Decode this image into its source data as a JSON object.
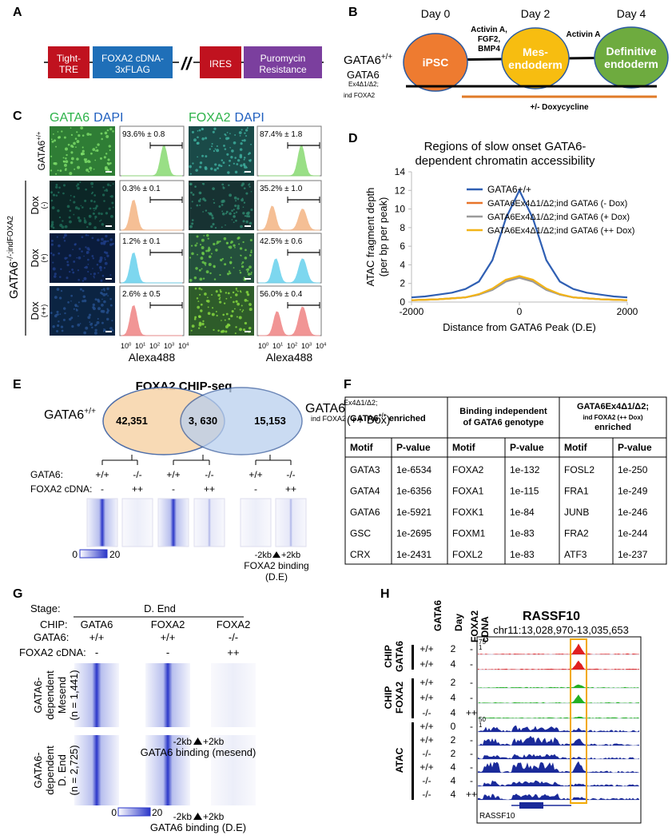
{
  "panels": [
    "A",
    "B",
    "C",
    "D",
    "E",
    "F",
    "G",
    "H"
  ],
  "construct": {
    "elements": [
      [
        "Tight-",
        "TRE"
      ],
      [
        "FOXA2 cDNA-",
        "3xFLAG"
      ],
      [
        "IRES"
      ],
      [
        "Puromycin",
        "Resistance"
      ]
    ],
    "break": "//"
  },
  "timeline": {
    "days": [
      "Day 0",
      "Day 2",
      "Day 4"
    ],
    "stages": [
      [
        "iPSC"
      ],
      [
        "Mes-",
        "endoderm"
      ],
      [
        "Definitive",
        "endoderm"
      ]
    ],
    "treatments": [
      [
        "Activin A,",
        "FGF2,",
        "BMP4"
      ],
      [
        "Activin A"
      ]
    ],
    "wildtype": {
      "base": "GATA6",
      "sup": "+/+"
    },
    "mutant": [
      "GATA6",
      "Ex4Δ1/Δ2;",
      "ind FOXA2"
    ],
    "dox": "+/- Doxycycline"
  },
  "flow": {
    "headers": [
      {
        "marker": "GATA6",
        "stain": "DAPI"
      },
      {
        "marker": "FOXA2",
        "stain": "DAPI"
      }
    ],
    "group": {
      "base": "GATA6",
      "sup": "-/-;indFOXA2"
    },
    "wildtype": {
      "base": "GATA6",
      "sup": "+/+"
    },
    "dox_rows": [
      {
        "label": "Dox",
        "dose": "(-)"
      },
      {
        "label": "Dox",
        "dose": "(+)"
      },
      {
        "label": "Dox",
        "dose": "(++)"
      }
    ],
    "percentages": [
      [
        "93.6% ± 0.8",
        "87.4% ± 1.8"
      ],
      [
        "0.3% ± 0.1",
        "35.2% ± 1.0"
      ],
      [
        "1.2% ± 0.1",
        "42.5% ± 0.6"
      ],
      [
        "2.6% ± 0.5",
        "56.0% ± 0.4"
      ]
    ],
    "axis_ticks": [
      {
        "base": "10",
        "sup": "0"
      },
      {
        "base": "10",
        "sup": "1"
      },
      {
        "base": "10",
        "sup": "2"
      },
      {
        "base": "10",
        "sup": "3"
      },
      {
        "base": "10",
        "sup": "4"
      }
    ],
    "axis_label": "Alexa488"
  },
  "chart_data": {
    "type": "line",
    "title": [
      "Regions of slow onset GATA6-",
      "dependent chromatin accessibility"
    ],
    "ylabel": [
      "ATAC fragment depth",
      "(per bp per peak)"
    ],
    "xlabel": "Distance from GATA6 Peak (D.E)",
    "x": [
      -2000,
      -1750,
      -1500,
      -1250,
      -1000,
      -750,
      -500,
      -250,
      0,
      250,
      500,
      750,
      1000,
      1250,
      1500,
      1750,
      2000
    ],
    "series": [
      {
        "name": "GATA6+/+",
        "color": "#2f5fb3",
        "values": [
          0.5,
          0.6,
          0.8,
          1.0,
          1.4,
          2.2,
          4.5,
          9.0,
          12.0,
          9.0,
          4.5,
          2.2,
          1.4,
          1.0,
          0.8,
          0.6,
          0.5
        ]
      },
      {
        "name": "GATA6Ex4Δ1/Δ2;ind GATA6 (- Dox)",
        "color": "#e8742a",
        "values": [
          0.2,
          0.25,
          0.3,
          0.4,
          0.5,
          0.8,
          1.4,
          2.3,
          2.7,
          2.3,
          1.4,
          0.8,
          0.5,
          0.4,
          0.3,
          0.25,
          0.2
        ]
      },
      {
        "name": "GATA6Ex4Δ1/Δ2;ind GATA6 (+ Dox)",
        "color": "#9a9a9a",
        "values": [
          0.2,
          0.25,
          0.3,
          0.4,
          0.5,
          0.8,
          1.3,
          2.2,
          2.6,
          2.2,
          1.3,
          0.8,
          0.5,
          0.4,
          0.3,
          0.25,
          0.2
        ]
      },
      {
        "name": "GATA6Ex4Δ1/Δ2;ind GATA6 (++ Dox)",
        "color": "#f2b418",
        "values": [
          0.2,
          0.25,
          0.3,
          0.4,
          0.5,
          0.85,
          1.45,
          2.4,
          2.8,
          2.4,
          1.45,
          0.85,
          0.5,
          0.4,
          0.3,
          0.25,
          0.2
        ]
      }
    ],
    "xlim": [
      -2000,
      2000
    ],
    "xticks": [
      -2000,
      0,
      2000
    ],
    "ylim": [
      0,
      14
    ],
    "yticks": [
      0,
      2,
      4,
      6,
      8,
      10,
      12,
      14
    ],
    "grid": false
  },
  "chipseq": {
    "title": "FOXA2 CHIP-seq",
    "left_label": {
      "base": "GATA6",
      "sup": "+/+"
    },
    "right_label": [
      "GATA6",
      "Ex4Δ1/Δ2;",
      "ind FOXA2",
      "(++ Dox)"
    ],
    "counts": [
      "42,351",
      "3, 630",
      "15,153"
    ],
    "row_labels": [
      "GATA6:",
      "FOXA2 cDNA:"
    ],
    "genotypes": [
      "+/+",
      "-/-",
      "+/+",
      "-/-",
      "+/+",
      "-/-"
    ],
    "cdna": [
      "-",
      "++",
      "-",
      "++",
      "-",
      "++"
    ],
    "scale": [
      "0",
      "20"
    ],
    "window": [
      "-2kb",
      "+2kb"
    ],
    "binding": [
      "FOXA2 binding",
      "(D.E)"
    ]
  },
  "motifs": {
    "groups": [
      {
        "base": "GATA6",
        "sup": "+/+",
        "rest": " enriched"
      },
      {
        "lines": [
          "Binding independent",
          "of GATA6 genotype"
        ]
      },
      {
        "lines": [
          "GATA6Ex4Δ1/Δ2;",
          "ind FOXA2 (++ Dox)",
          "enriched"
        ]
      }
    ],
    "columns": [
      "Motif",
      "P-value"
    ],
    "rows": [
      [
        "GATA3",
        "1e-6534",
        "FOXA2",
        "1e-132",
        "FOSL2",
        "1e-250"
      ],
      [
        "GATA4",
        "1e-6356",
        "FOXA1",
        "1e-115",
        "FRA1",
        "1e-249"
      ],
      [
        "GATA6",
        "1e-5921",
        "FOXK1",
        "1e-84",
        "JUNB",
        "1e-246"
      ],
      [
        "GSC",
        "1e-2695",
        "FOXM1",
        "1e-83",
        "FRA2",
        "1e-244"
      ],
      [
        "CRX",
        "1e-2431",
        "FOXL2",
        "1e-83",
        "ATF3",
        "1e-237"
      ]
    ]
  },
  "heatmaps": {
    "stage_label": "Stage:",
    "stage": "D. End",
    "chip_label": "CHIP:",
    "chips": [
      "GATA6",
      "FOXA2",
      "FOXA2"
    ],
    "gata6_label": "GATA6:",
    "genotypes": [
      "+/+",
      "+/+",
      "-/-"
    ],
    "cdna_label": "FOXA2 cDNA:",
    "cdna": [
      "-",
      "-",
      "++"
    ],
    "groups": [
      [
        "GATA6-",
        "dependent",
        "Mesend",
        "(n = 1,441)"
      ],
      [
        "GATA6-",
        "dependent",
        "D. End",
        "(n = 2,725)"
      ]
    ],
    "bindings": [
      [
        "-2kb",
        "+2kb",
        "GATA6 binding (mesend)"
      ],
      [
        "-2kb",
        "+2kb",
        "GATA6 binding (D.E)"
      ]
    ],
    "scale": [
      "0",
      "20"
    ]
  },
  "tracks": {
    "gene": "RASSF10",
    "locus": "chr11:13,028,970-13,035,653",
    "headers": {
      "gata6": "GATA6",
      "day": "Day",
      "cdna": [
        "FOXA2",
        "cDNA"
      ]
    },
    "groups": [
      {
        "label": [
          "CHIP",
          "GATA6"
        ],
        "scale": [
          "75",
          "1"
        ],
        "rows": [
          [
            "+/+",
            "2",
            "-"
          ],
          [
            "+/+",
            "4",
            "-"
          ]
        ]
      },
      {
        "label": [
          "CHIP",
          "FOXA2"
        ],
        "rows": [
          [
            "+/+",
            "2",
            "-"
          ],
          [
            "+/+",
            "4",
            "-"
          ],
          [
            "-/-",
            "4",
            "++"
          ]
        ]
      },
      {
        "label": [
          "ATAC"
        ],
        "scale": [
          "50",
          "1"
        ],
        "rows": [
          [
            "+/+",
            "0",
            "-"
          ],
          [
            "+/+",
            "2",
            "-"
          ],
          [
            "-/-",
            "2",
            "-"
          ],
          [
            "+/+",
            "4",
            "-"
          ],
          [
            "-/-",
            "4",
            "-"
          ],
          [
            "-/-",
            "4",
            "++"
          ]
        ]
      }
    ]
  }
}
